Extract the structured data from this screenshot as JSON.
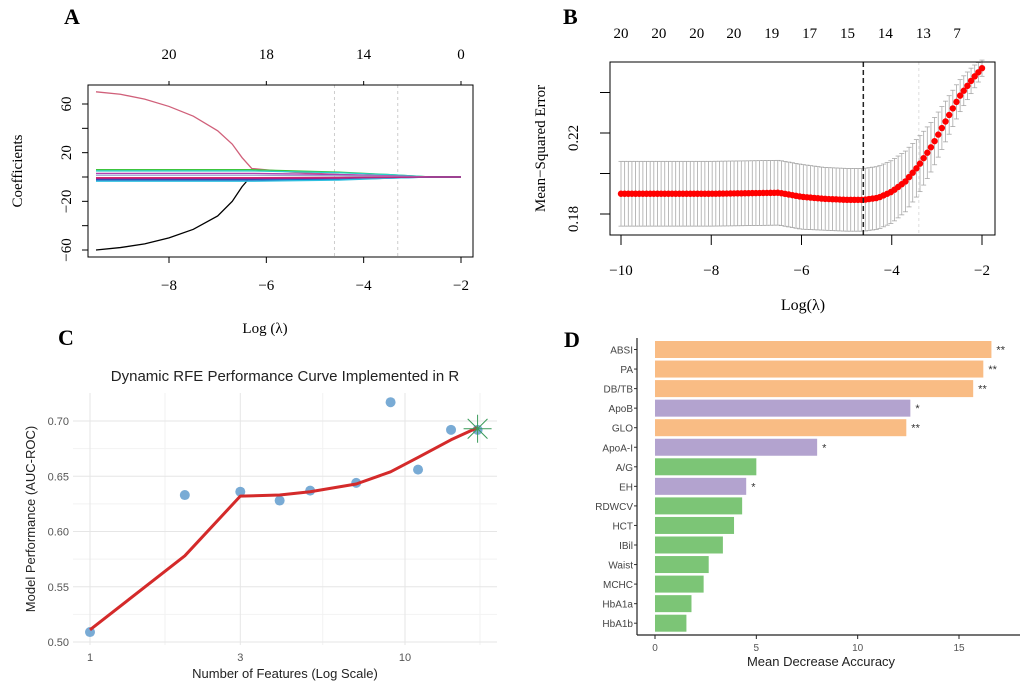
{
  "panels": {
    "a": "A",
    "b": "B",
    "c": "C",
    "d": "D"
  },
  "chart_data": [
    {
      "panel": "A",
      "type": "line",
      "xlabel": "Log  (λ)",
      "ylabel": "Coefficients",
      "xlim": [
        -9.5,
        -2
      ],
      "ylim": [
        -60,
        70
      ],
      "xticks": [
        -8,
        -6,
        -4,
        -2
      ],
      "yticks": [
        60,
        40,
        20,
        0,
        -20,
        -40,
        -60
      ],
      "ytick_labels": [
        "60",
        "",
        "20",
        "",
        "-20",
        "",
        "-60"
      ],
      "top_axis_ticks": [
        -8,
        -6,
        -4,
        -2
      ],
      "top_axis_labels": [
        "20",
        "18",
        "14",
        "0"
      ],
      "vlines": [
        -4.6,
        -3.3
      ],
      "series": [
        {
          "color": "#d0607a",
          "x": [
            -9.5,
            -9,
            -8.5,
            -8,
            -7.5,
            -7,
            -6.7,
            -6.5,
            -6.3,
            -5.5,
            -4.5,
            -3.5,
            -2.6,
            -2
          ],
          "y": [
            70,
            68,
            64,
            58,
            50,
            38,
            27,
            16,
            7,
            4,
            2,
            1,
            0,
            0
          ]
        },
        {
          "color": "#000000",
          "x": [
            -9.5,
            -9,
            -8.5,
            -8,
            -7.5,
            -7,
            -6.7,
            -6.5,
            -6.35,
            -5,
            -3,
            -2.6,
            -2
          ],
          "y": [
            -60,
            -58,
            -55,
            -50,
            -43,
            -32,
            -20,
            -8,
            -1,
            -0.6,
            -0.3,
            0,
            0
          ]
        },
        {
          "color": "#3cc43c",
          "x": [
            -9.5,
            -6.3,
            -4.5,
            -3.5,
            -2.6,
            -2
          ],
          "y": [
            6,
            6,
            4,
            2,
            0,
            0
          ]
        },
        {
          "color": "#2ad0c8",
          "x": [
            -9.5,
            -6.3,
            -4.5,
            -3.5,
            -2.6,
            -2
          ],
          "y": [
            5,
            5,
            3.5,
            2,
            0,
            0
          ]
        },
        {
          "color": "#b040b0",
          "x": [
            -9.5,
            -6.3,
            -4.5,
            -3.5,
            -2.6,
            -2
          ],
          "y": [
            3,
            3,
            2,
            1,
            0,
            0
          ]
        },
        {
          "color": "#9aa0d0",
          "x": [
            -9.5,
            -6.3,
            -4.5,
            -3.5,
            -2.6,
            -2
          ],
          "y": [
            1.5,
            1.5,
            1,
            0.5,
            0,
            0
          ]
        },
        {
          "color": "#e03060",
          "x": [
            -9.5,
            -6.3,
            -4.5,
            -3.5,
            -2.6,
            -2
          ],
          "y": [
            -0.5,
            -0.5,
            -0.3,
            -0.1,
            0,
            0
          ]
        },
        {
          "color": "#6020a0",
          "x": [
            -9.5,
            -6.3,
            -4.5,
            -3.5,
            -2.6,
            -2
          ],
          "y": [
            -1.5,
            -1.5,
            -1,
            -0.5,
            0,
            0
          ]
        },
        {
          "color": "#2060c0",
          "x": [
            -9.5,
            -6.3,
            -4.5,
            -3.5,
            -2.6,
            -2
          ],
          "y": [
            -2.5,
            -2.5,
            -2,
            -1,
            0,
            0
          ]
        },
        {
          "color": "#30c0e0",
          "x": [
            -9.5,
            -6.3,
            -4.5,
            -3.5,
            -2.6,
            -2
          ],
          "y": [
            -3.5,
            -3.5,
            -2.5,
            -1,
            0,
            0
          ]
        },
        {
          "color": "#c02080",
          "x": [
            -9.5,
            -6.3,
            -4.5,
            -3.5,
            -2.6,
            -2
          ],
          "y": [
            -1,
            -1,
            -0.8,
            -0.4,
            0,
            0
          ]
        }
      ]
    },
    {
      "panel": "B",
      "type": "scatter",
      "xlabel": "Log(λ)",
      "ylabel": "Mean−Squared Error",
      "xlim": [
        -10.25,
        -1.7
      ],
      "ylim": [
        0.17,
        0.255
      ],
      "xticks": [
        -10,
        -8,
        -6,
        -4,
        -2
      ],
      "yticks": [
        0.24,
        0.22,
        0.2,
        0.18
      ],
      "ytick_labels": [
        "",
        "0.22",
        "",
        "0.18"
      ],
      "top_axis_x": [
        -10,
        -9.16,
        -8.32,
        -7.5,
        -6.66,
        -5.82,
        -4.98,
        -4.14,
        -3.3,
        -2.55
      ],
      "top_axis_labels": [
        "20",
        "20",
        "20",
        "20",
        "19",
        "17",
        "15",
        "14",
        "13",
        "7"
      ],
      "vline_min": -4.63,
      "vline_1se": -3.4,
      "curve_x": [
        -10,
        -8,
        -6.5,
        -6,
        -5.5,
        -5,
        -4.63,
        -4.3,
        -4,
        -3.7,
        -3.4,
        -3.1,
        -2.8,
        -2.5,
        -2.2,
        -2
      ],
      "curve_mse": [
        0.19,
        0.19,
        0.1905,
        0.1885,
        0.1875,
        0.187,
        0.187,
        0.188,
        0.191,
        0.196,
        0.204,
        0.214,
        0.226,
        0.238,
        0.247,
        0.252
      ],
      "curve_se": [
        0.016,
        0.016,
        0.016,
        0.016,
        0.0155,
        0.0155,
        0.0155,
        0.0155,
        0.0155,
        0.015,
        0.014,
        0.012,
        0.01,
        0.008,
        0.006,
        0.004
      ],
      "point_color": "#ff0000",
      "errorbar_color": "#a8a8a8"
    },
    {
      "panel": "C",
      "type": "line",
      "title": "Dynamic RFE Performance Curve Implemented in R",
      "xlabel": "Number of Features (Log Scale)",
      "ylabel": "Model Performance (AUC-ROC)",
      "xscale": "log",
      "xlim": [
        0.9,
        19
      ],
      "ylim": [
        0.495,
        0.725
      ],
      "xticks": [
        1,
        3,
        10
      ],
      "yticks": [
        0.5,
        0.55,
        0.6,
        0.65,
        0.7
      ],
      "ytick_labels": [
        "0.50",
        "0.55",
        "0.60",
        "0.65",
        "0.70"
      ],
      "grid": true,
      "points": {
        "color": "#6aa2d0",
        "x": [
          1,
          2,
          3,
          4,
          5,
          7,
          9,
          11,
          14,
          17
        ],
        "y": [
          0.509,
          0.633,
          0.636,
          0.628,
          0.637,
          0.644,
          0.717,
          0.656,
          0.692,
          0.692
        ]
      },
      "smooth": {
        "color": "#d42a2a",
        "x": [
          1,
          2,
          3,
          4,
          5,
          7,
          9,
          11,
          14,
          17
        ],
        "y": [
          0.511,
          0.578,
          0.632,
          0.633,
          0.636,
          0.643,
          0.654,
          0.667,
          0.683,
          0.694
        ]
      },
      "optimum": {
        "color": "#3a9a5a",
        "x": 17,
        "y": 0.693
      }
    },
    {
      "panel": "D",
      "type": "bar",
      "orientation": "horizontal",
      "xlabel": "Mean Decrease Accuracy",
      "xlim": [
        -1.2,
        18
      ],
      "xticks": [
        0,
        5,
        10,
        15
      ],
      "categories": [
        "ABSI",
        "PA",
        "DB/TB",
        "ApoB",
        "GLO",
        "ApoA-I",
        "A/G",
        "EH",
        "RDWCV",
        "HCT",
        "IBil",
        "Waist",
        "MCHC",
        "HbA1a",
        "HbA1b"
      ],
      "values": [
        16.6,
        16.2,
        15.7,
        12.6,
        12.4,
        8.0,
        5.0,
        4.5,
        4.3,
        3.9,
        3.35,
        2.65,
        2.4,
        1.8,
        1.55
      ],
      "colors": [
        "#f9bc84",
        "#f9bc84",
        "#f9bc84",
        "#b3a3cf",
        "#f9bc84",
        "#b3a3cf",
        "#7cc576",
        "#b3a3cf",
        "#7cc576",
        "#7cc576",
        "#7cc576",
        "#7cc576",
        "#7cc576",
        "#7cc576",
        "#7cc576"
      ],
      "significance": [
        "**",
        "**",
        "**",
        "*",
        "**",
        "*",
        "",
        "*",
        "",
        "",
        "",
        "",
        "",
        "",
        ""
      ]
    }
  ]
}
